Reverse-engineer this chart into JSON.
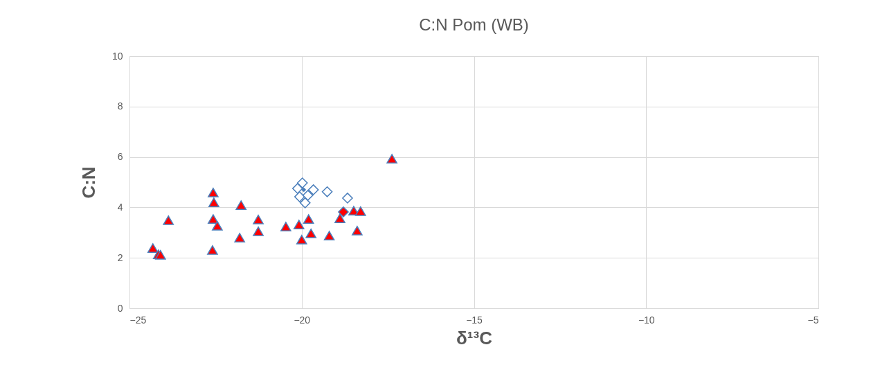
{
  "chart_data": {
    "type": "scatter",
    "title": "C:N Pom (WB)",
    "xlabel": "δ¹³C",
    "ylabel": "C:N",
    "xlim": [
      -25,
      -5
    ],
    "xticks": [
      -25,
      -20,
      -15,
      -10,
      -5
    ],
    "ylim": [
      0,
      10
    ],
    "yticks": [
      0,
      2,
      4,
      6,
      8,
      10
    ],
    "grid": true,
    "series": [
      {
        "color": "#ff0000",
        "marker": "triangle",
        "x": [
          -24.32,
          -24.16,
          -24.1,
          -23.87,
          -22.57,
          -22.55,
          -22.57,
          -22.45,
          -22.59,
          -21.76,
          -21.8,
          -21.26,
          -21.26,
          -20.46,
          -20.08,
          -20.0,
          -19.8,
          -19.73,
          -19.2,
          -18.89,
          -18.49,
          -18.29,
          -18.39,
          -17.38
        ],
        "values": [
          2.39,
          2.14,
          2.12,
          3.49,
          4.59,
          4.2,
          3.54,
          3.27,
          2.31,
          4.09,
          2.8,
          3.52,
          3.05,
          3.24,
          3.32,
          2.72,
          3.54,
          2.97,
          2.88,
          3.57,
          3.87,
          3.85,
          3.08,
          5.93
        ]
      },
      {
        "color": "#ff0000",
        "marker": "diamond",
        "x": [
          -18.79
        ],
        "values": [
          3.82
        ]
      },
      {
        "color": "#ffffff",
        "marker": "diamond",
        "x": [
          -19.98,
          -20.12,
          -19.66,
          -19.26,
          -20.06,
          -19.82,
          -19.9,
          -18.67
        ],
        "values": [
          4.97,
          4.75,
          4.7,
          4.62,
          4.42,
          4.48,
          4.18,
          4.37
        ]
      },
      {
        "color": "#4a7ebb",
        "marker": "diamond",
        "x": [
          -19.94
        ],
        "values": [
          4.7
        ]
      }
    ]
  }
}
